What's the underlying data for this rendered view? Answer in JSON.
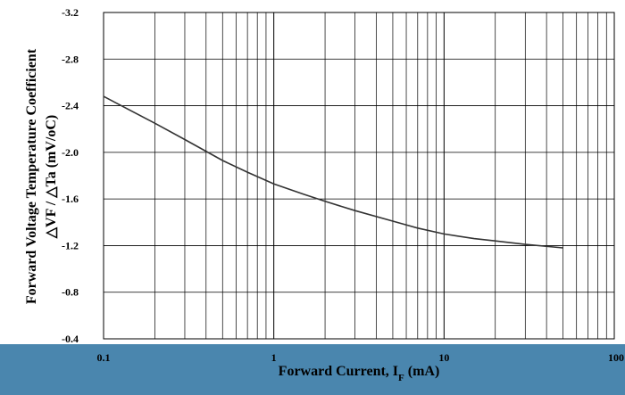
{
  "chart_data": {
    "type": "line",
    "xscale": "log",
    "xlim": [
      0.1,
      100
    ],
    "ylim": [
      -3.2,
      -0.4
    ],
    "x_ticks": [
      "0.1",
      "1",
      "10",
      "100"
    ],
    "y_ticks": [
      "-3.2",
      "-2.8",
      "-2.4",
      "-2.0",
      "-1.6",
      "-1.2",
      "-0.8",
      "-0.4"
    ],
    "xlabel": "Forward Current, I",
    "xlabel_sub": "F",
    "xlabel_unit": " (mA)",
    "ylabel_line1": "Forward Voltage Temperature Coefficient",
    "ylabel_line2": "△VF / △Ta (mV/oC)",
    "grid": true,
    "series": [
      {
        "x": [
          0.1,
          0.2,
          0.3,
          0.5,
          0.7,
          1,
          1.5,
          2,
          3,
          5,
          7,
          10,
          15,
          20,
          30,
          50
        ],
        "y": [
          -2.48,
          -2.25,
          -2.11,
          -1.93,
          -1.83,
          -1.73,
          -1.64,
          -1.58,
          -1.5,
          -1.41,
          -1.35,
          -1.3,
          -1.26,
          -1.24,
          -1.21,
          -1.18
        ]
      }
    ]
  },
  "colors": {
    "band": "#4a86ae",
    "line": "#333333"
  }
}
